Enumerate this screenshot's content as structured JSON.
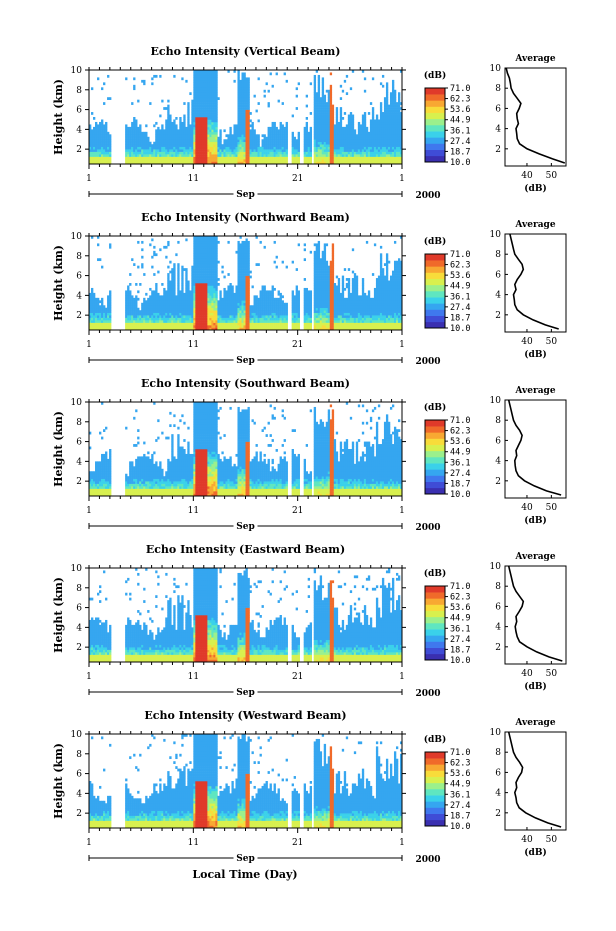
{
  "xlabel": "Local Time (Day)",
  "month_label": "Sep",
  "year_label": "2000",
  "colorbar": {
    "unit": "(dB)",
    "ticks": [
      "71.0",
      "62.3",
      "53.6",
      "44.9",
      "36.1",
      "27.4",
      "18.7",
      "10.0"
    ],
    "colors": [
      "#3a2fb0",
      "#3f4cd6",
      "#3f78ee",
      "#35a6f0",
      "#3ad1ea",
      "#5fe6c0",
      "#9bf08c",
      "#d8f04e",
      "#f8dc3a",
      "#f8a832",
      "#f06a2a",
      "#e03a2a"
    ]
  },
  "chart_data": [
    {
      "type": "heatmap",
      "title": "Echo Intensity (Vertical Beam)",
      "ylabel": "Height (km)",
      "x_ticks": [
        "1",
        "11",
        "21",
        "1"
      ],
      "y_ticks": [
        "2",
        "4",
        "6",
        "8",
        "10"
      ],
      "ylim": [
        0.5,
        10
      ],
      "x_range_days": [
        1,
        31
      ],
      "profile": {
        "title": "Average",
        "xlabel": "(dB)",
        "x_ticks": [
          "40",
          "50"
        ],
        "y_ticks": [
          "2",
          "4",
          "6",
          "8",
          "10"
        ],
        "height_km": [
          0.6,
          1.0,
          1.5,
          2.0,
          2.5,
          3.0,
          3.5,
          4.0,
          4.5,
          5.0,
          5.5,
          6.0,
          6.5,
          7.0,
          7.5,
          8.0,
          8.5,
          9.0,
          9.5,
          10.0
        ],
        "db": [
          55.5,
          50.5,
          45.0,
          40.0,
          37.0,
          36.0,
          35.8,
          35.5,
          36.5,
          36.0,
          35.8,
          36.8,
          37.5,
          36.0,
          34.5,
          33.5,
          33.2,
          32.8,
          32.0,
          31.5
        ]
      }
    },
    {
      "type": "heatmap",
      "title": "Echo Intensity (Northward Beam)",
      "ylabel": "Height (km)",
      "x_ticks": [
        "1",
        "11",
        "21",
        "1"
      ],
      "y_ticks": [
        "2",
        "4",
        "6",
        "8",
        "10"
      ],
      "ylim": [
        0.5,
        10
      ],
      "x_range_days": [
        1,
        31
      ],
      "profile": {
        "title": "Average",
        "xlabel": "(dB)",
        "x_ticks": [
          "40",
          "50"
        ],
        "y_ticks": [
          "2",
          "4",
          "6",
          "8",
          "10"
        ],
        "height_km": [
          0.6,
          1.0,
          1.5,
          2.0,
          2.5,
          3.0,
          3.5,
          4.0,
          4.5,
          5.0,
          5.5,
          6.0,
          6.5,
          7.0,
          7.5,
          8.0,
          8.5,
          9.0,
          9.5,
          10.0
        ],
        "db": [
          53.0,
          47.5,
          42.5,
          38.5,
          36.0,
          35.0,
          34.8,
          34.5,
          35.5,
          35.0,
          36.0,
          37.5,
          38.5,
          38.0,
          36.5,
          35.0,
          34.5,
          34.0,
          33.5,
          33.0
        ]
      }
    },
    {
      "type": "heatmap",
      "title": "Echo Intensity (Southward Beam)",
      "ylabel": "Height (km)",
      "x_ticks": [
        "1",
        "11",
        "21",
        "1"
      ],
      "y_ticks": [
        "2",
        "4",
        "6",
        "8",
        "10"
      ],
      "ylim": [
        0.5,
        10
      ],
      "x_range_days": [
        1,
        31
      ],
      "profile": {
        "title": "Average",
        "xlabel": "(dB)",
        "x_ticks": [
          "40",
          "50"
        ],
        "y_ticks": [
          "2",
          "4",
          "6",
          "8",
          "10"
        ],
        "height_km": [
          0.6,
          1.0,
          1.5,
          2.0,
          2.5,
          3.0,
          3.5,
          4.0,
          4.5,
          5.0,
          5.5,
          6.0,
          6.5,
          7.0,
          7.5,
          8.0,
          8.5,
          9.0,
          9.5,
          10.0
        ],
        "db": [
          54.0,
          48.0,
          43.0,
          39.0,
          36.5,
          35.5,
          35.2,
          35.0,
          35.8,
          35.5,
          36.5,
          37.5,
          38.0,
          37.0,
          35.5,
          34.5,
          34.0,
          33.5,
          33.0,
          32.5
        ]
      }
    },
    {
      "type": "heatmap",
      "title": "Echo Intensity (Eastward Beam)",
      "ylabel": "Height (km)",
      "x_ticks": [
        "1",
        "11",
        "21",
        "1"
      ],
      "y_ticks": [
        "2",
        "4",
        "6",
        "8",
        "10"
      ],
      "ylim": [
        0.5,
        10
      ],
      "x_range_days": [
        1,
        31
      ],
      "profile": {
        "title": "Average",
        "xlabel": "(dB)",
        "x_ticks": [
          "40",
          "50"
        ],
        "y_ticks": [
          "2",
          "4",
          "6",
          "8",
          "10"
        ],
        "height_km": [
          0.6,
          1.0,
          1.5,
          2.0,
          2.5,
          3.0,
          3.5,
          4.0,
          4.5,
          5.0,
          5.5,
          6.0,
          6.5,
          7.0,
          7.5,
          8.0,
          8.5,
          9.0,
          9.5,
          10.0
        ],
        "db": [
          54.5,
          49.0,
          44.0,
          40.0,
          37.0,
          36.0,
          35.5,
          35.2,
          35.8,
          35.5,
          36.8,
          38.0,
          38.5,
          37.0,
          35.5,
          34.5,
          34.0,
          33.5,
          33.0,
          32.5
        ]
      }
    },
    {
      "type": "heatmap",
      "title": "Echo Intensity (Westward Beam)",
      "ylabel": "Height (km)",
      "x_ticks": [
        "1",
        "11",
        "21",
        "1"
      ],
      "y_ticks": [
        "2",
        "4",
        "6",
        "8",
        "10"
      ],
      "ylim": [
        0.5,
        10
      ],
      "x_range_days": [
        1,
        31
      ],
      "profile": {
        "title": "Average",
        "xlabel": "(dB)",
        "x_ticks": [
          "40",
          "50"
        ],
        "y_ticks": [
          "2",
          "4",
          "6",
          "8",
          "10"
        ],
        "height_km": [
          0.6,
          1.0,
          1.5,
          2.0,
          2.5,
          3.0,
          3.5,
          4.0,
          4.5,
          5.0,
          5.5,
          6.0,
          6.5,
          7.0,
          7.5,
          8.0,
          8.5,
          9.0,
          9.5,
          10.0
        ],
        "db": [
          54.0,
          48.5,
          43.5,
          39.5,
          36.8,
          35.8,
          35.5,
          35.0,
          35.8,
          35.5,
          36.5,
          37.8,
          38.2,
          37.0,
          35.5,
          34.5,
          34.0,
          33.5,
          33.0,
          32.5
        ]
      }
    }
  ]
}
